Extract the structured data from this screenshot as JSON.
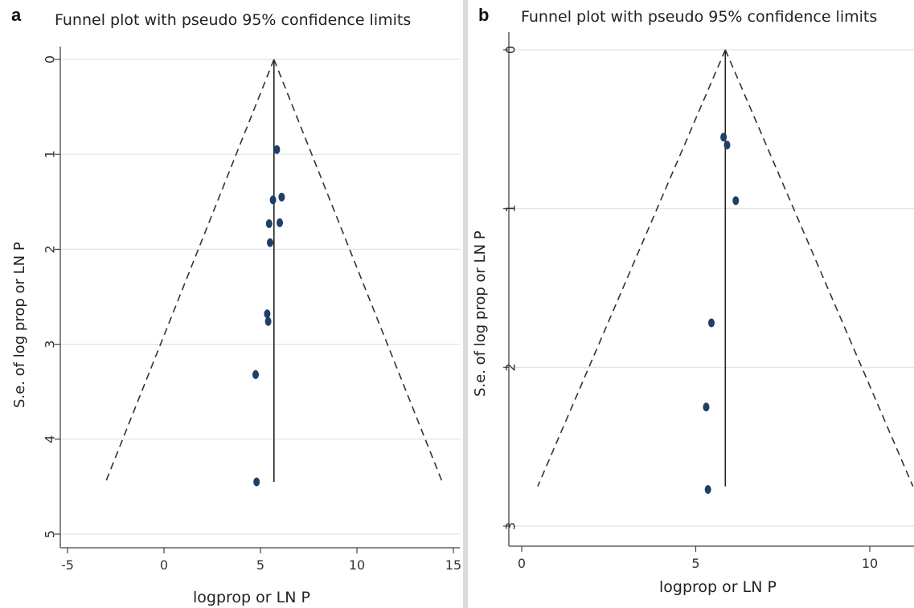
{
  "chart_data": [
    {
      "panel": "a",
      "type": "scatter",
      "title": "Funnel plot with pseudo 95% confidence limits",
      "xlabel": "logprop or LN P",
      "ylabel": "S.e. of log prop or LN P",
      "xlim": [
        -5,
        15
      ],
      "ylim": [
        0,
        5
      ],
      "y_reversed": true,
      "xticks": [
        -5,
        0,
        5,
        10,
        15
      ],
      "yticks": [
        0,
        1,
        2,
        3,
        4,
        5
      ],
      "grid": true,
      "pooled_estimate": 5.7,
      "funnel_se_max": 4.45,
      "points": [
        {
          "x": 5.85,
          "y": 0.95
        },
        {
          "x": 6.1,
          "y": 1.45
        },
        {
          "x": 5.65,
          "y": 1.48
        },
        {
          "x": 5.45,
          "y": 1.73
        },
        {
          "x": 6.0,
          "y": 1.72
        },
        {
          "x": 5.5,
          "y": 1.93
        },
        {
          "x": 5.35,
          "y": 2.68
        },
        {
          "x": 5.4,
          "y": 2.76
        },
        {
          "x": 4.75,
          "y": 3.32
        },
        {
          "x": 4.8,
          "y": 4.45
        }
      ]
    },
    {
      "panel": "b",
      "type": "scatter",
      "title": "Funnel plot with pseudo 95% confidence limits",
      "xlabel": "logprop or LN P",
      "ylabel": "S.e. of log prop or LN P",
      "xlim": [
        0,
        11.5
      ],
      "ylim": [
        0,
        3
      ],
      "y_reversed": true,
      "xticks": [
        0,
        5,
        10
      ],
      "yticks": [
        0,
        1,
        2,
        3
      ],
      "grid": true,
      "pooled_estimate": 5.85,
      "funnel_se_max": 2.75,
      "points": [
        {
          "x": 5.8,
          "y": 0.55
        },
        {
          "x": 5.9,
          "y": 0.6
        },
        {
          "x": 6.15,
          "y": 0.95
        },
        {
          "x": 5.45,
          "y": 1.72
        },
        {
          "x": 5.3,
          "y": 2.25
        },
        {
          "x": 5.35,
          "y": 2.77
        }
      ]
    }
  ]
}
